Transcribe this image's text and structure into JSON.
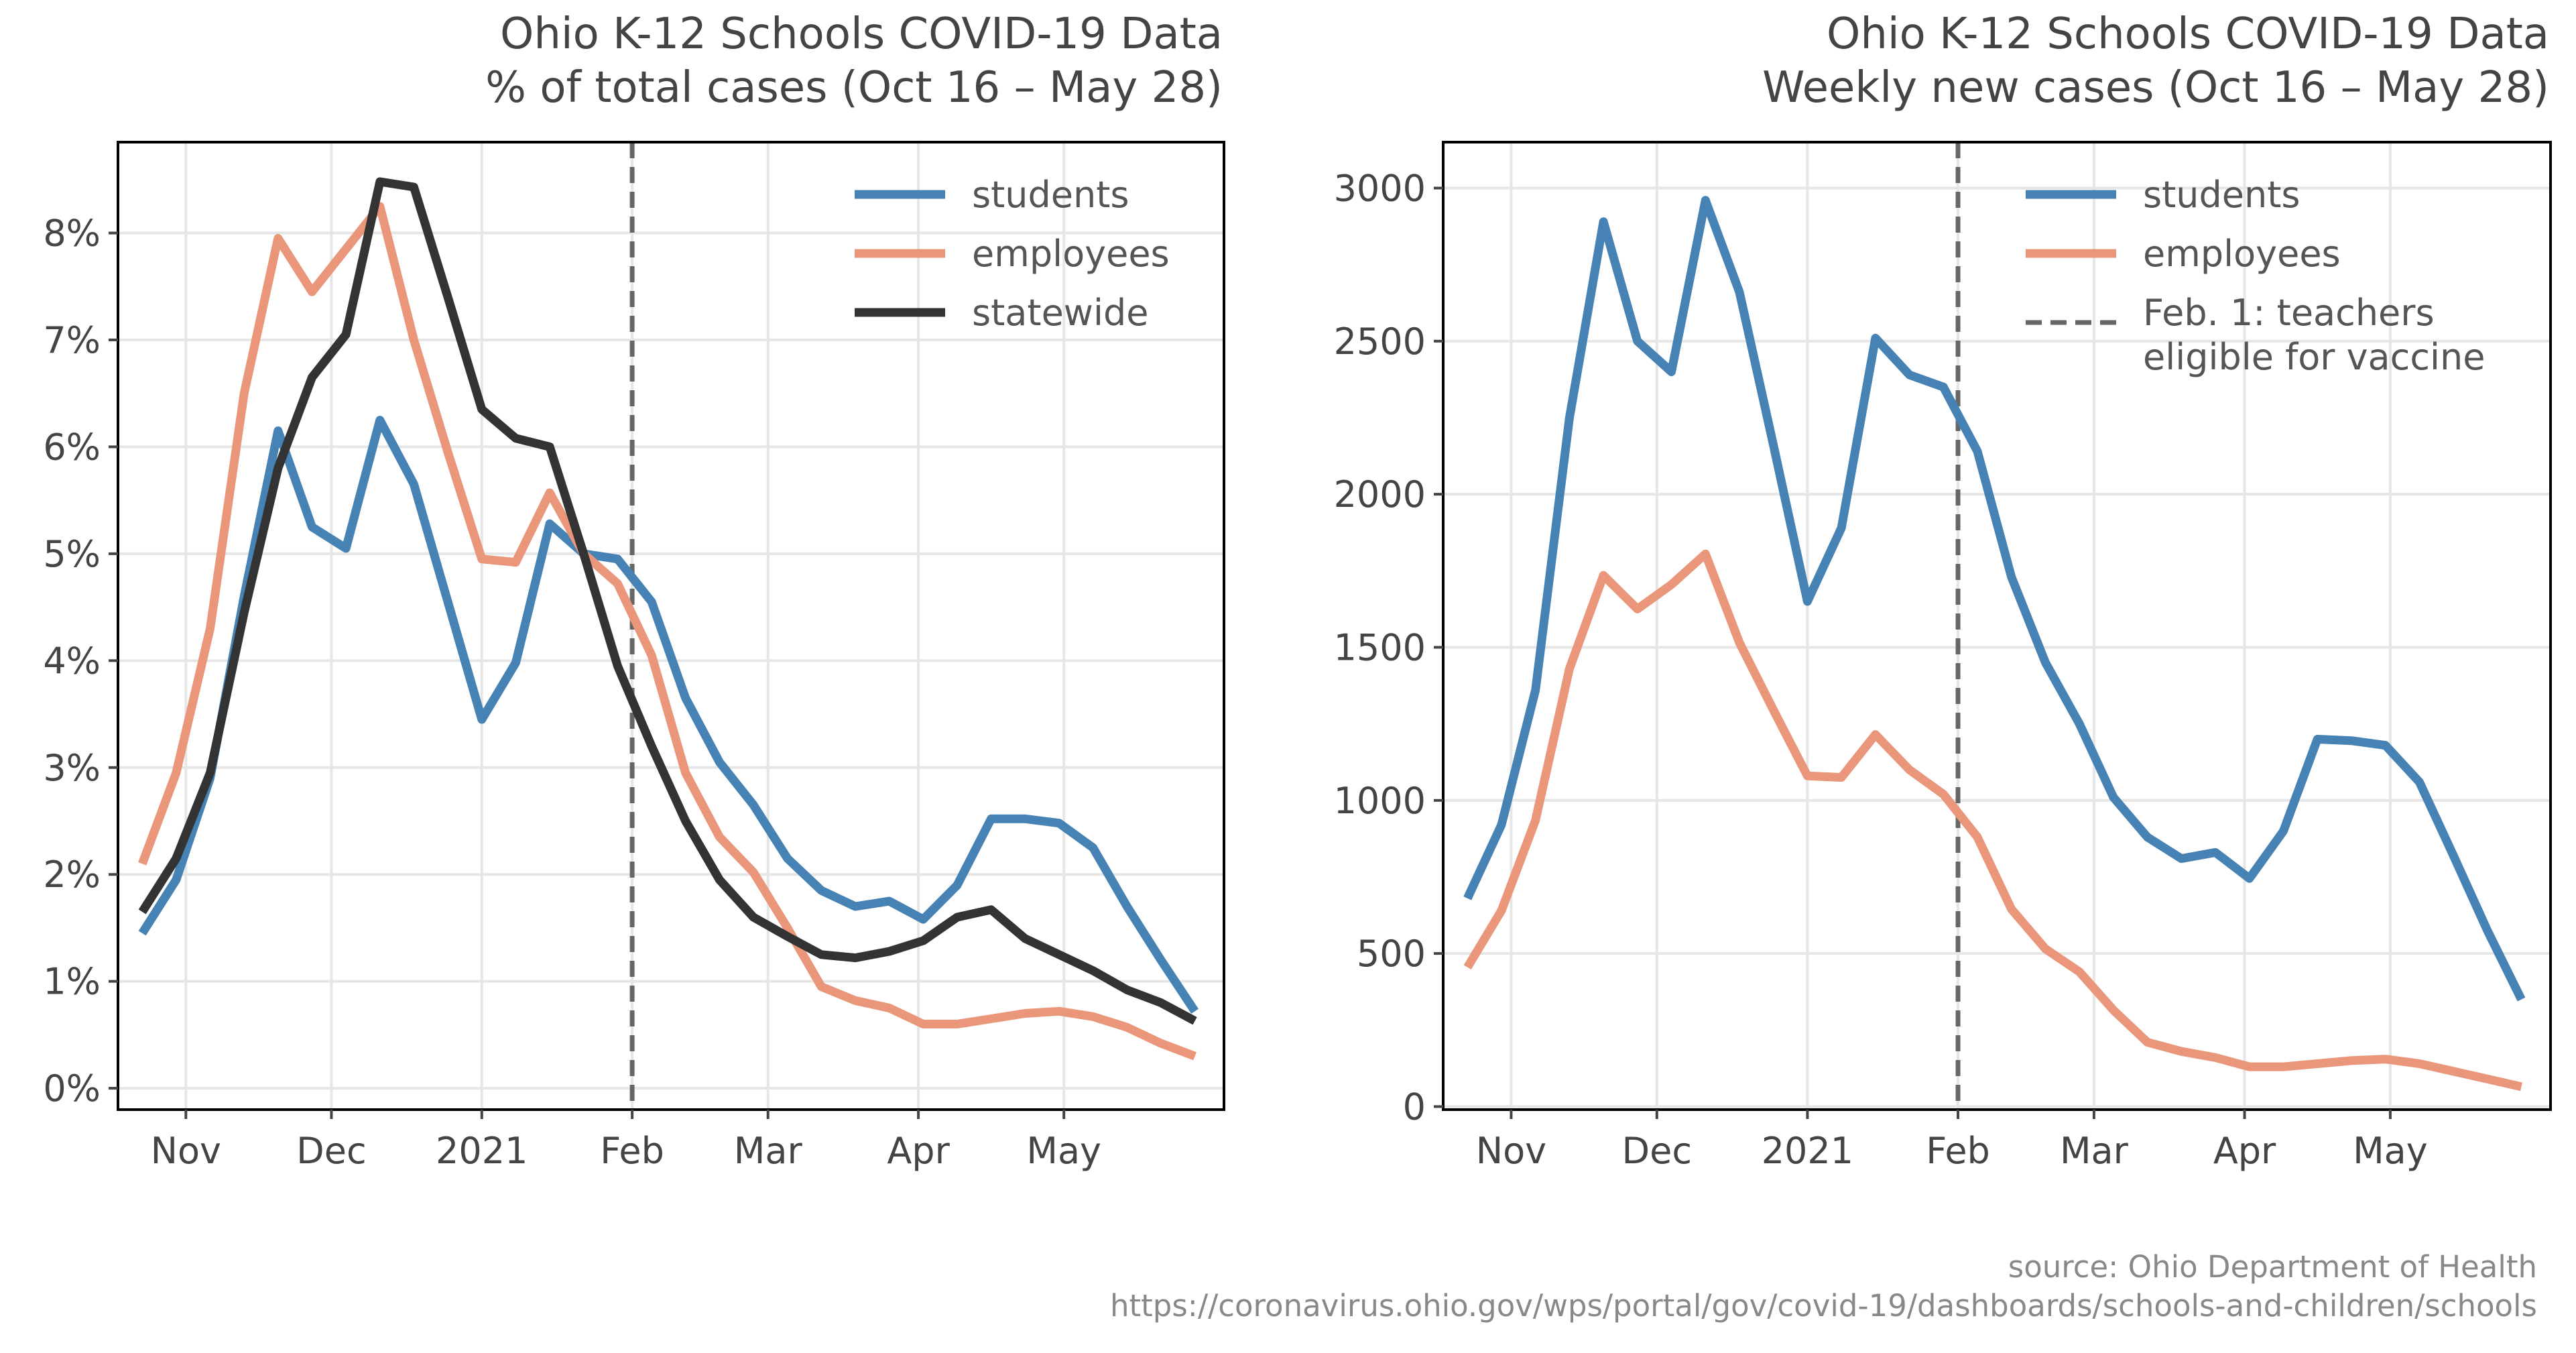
{
  "source": {
    "line1": "source: Ohio Department of Health",
    "line2": "https://coronavirus.ohio.gov/wps/portal/gov/covid-19/dashboards/schools-and-children/schools"
  },
  "colors": {
    "students": "#4682b4",
    "employees": "#e9967a",
    "statewide": "#333333",
    "vline": "#666666",
    "grid": "#e6e6e6",
    "text": "#444444"
  },
  "chart_data": [
    {
      "type": "line",
      "title": "Ohio K-12 Schools COVID-19 Data",
      "subtitle": "% of total cases (Oct 16 – May 28)",
      "xlabel": "",
      "ylabel": "",
      "x_axis": "date",
      "xlim": [
        "2020-10-18",
        "2021-06-03"
      ],
      "ylim": [
        -0.2,
        8.85
      ],
      "yticks": [
        0,
        1,
        2,
        3,
        4,
        5,
        6,
        7,
        8
      ],
      "ytick_labels": [
        "0%",
        "1%",
        "2%",
        "3%",
        "4%",
        "5%",
        "6%",
        "7%",
        "8%"
      ],
      "xticks": [
        "2020-11-01",
        "2020-12-01",
        "2021-01-01",
        "2021-02-01",
        "2021-03-01",
        "2021-04-01",
        "2021-05-01"
      ],
      "xtick_labels": [
        "Nov",
        "Dec",
        "2021",
        "Feb",
        "Mar",
        "Apr",
        "May"
      ],
      "grid": true,
      "legend": "top-right",
      "vline": {
        "x": "2021-02-01",
        "style": "dashed"
      },
      "x": [
        "2020-10-23",
        "2020-10-30",
        "2020-11-06",
        "2020-11-13",
        "2020-11-20",
        "2020-11-27",
        "2020-12-04",
        "2020-12-11",
        "2020-12-18",
        "2020-12-25",
        "2021-01-01",
        "2021-01-08",
        "2021-01-15",
        "2021-01-22",
        "2021-01-29",
        "2021-02-05",
        "2021-02-12",
        "2021-02-19",
        "2021-02-26",
        "2021-03-05",
        "2021-03-12",
        "2021-03-19",
        "2021-03-26",
        "2021-04-02",
        "2021-04-09",
        "2021-04-16",
        "2021-04-23",
        "2021-04-30",
        "2021-05-07",
        "2021-05-14",
        "2021-05-21",
        "2021-05-28"
      ],
      "series": [
        {
          "name": "students",
          "values": [
            1.45,
            1.95,
            2.9,
            4.6,
            6.15,
            5.25,
            5.05,
            6.25,
            5.65,
            4.55,
            3.45,
            3.98,
            5.28,
            5.0,
            4.95,
            4.55,
            3.65,
            3.05,
            2.65,
            2.15,
            1.85,
            1.7,
            1.75,
            1.58,
            1.9,
            2.52,
            2.52,
            2.48,
            2.25,
            1.7,
            1.2,
            0.72
          ]
        },
        {
          "name": "employees",
          "values": [
            2.1,
            2.95,
            4.3,
            6.5,
            7.95,
            7.45,
            7.85,
            8.25,
            7.0,
            5.95,
            4.95,
            4.92,
            5.57,
            5.0,
            4.72,
            4.05,
            2.95,
            2.35,
            2.02,
            1.5,
            0.95,
            0.82,
            0.75,
            0.6,
            0.6,
            0.65,
            0.7,
            0.72,
            0.67,
            0.57,
            0.42,
            0.3
          ]
        },
        {
          "name": "statewide",
          "values": [
            1.65,
            2.15,
            2.95,
            4.45,
            5.8,
            6.65,
            7.05,
            8.48,
            8.43,
            7.4,
            6.35,
            6.08,
            6.0,
            5.0,
            3.95,
            3.2,
            2.5,
            1.95,
            1.6,
            1.42,
            1.25,
            1.22,
            1.28,
            1.38,
            1.6,
            1.67,
            1.4,
            1.25,
            1.1,
            0.92,
            0.8,
            0.63
          ]
        }
      ]
    },
    {
      "type": "line",
      "title": "Ohio K-12 Schools COVID-19 Data",
      "subtitle": "Weekly new cases (Oct 16 – May 28)",
      "xlabel": "",
      "ylabel": "",
      "x_axis": "date",
      "xlim": [
        "2020-10-18",
        "2021-06-03"
      ],
      "ylim": [
        -10,
        3150
      ],
      "yticks": [
        0,
        500,
        1000,
        1500,
        2000,
        2500,
        3000
      ],
      "ytick_labels": [
        "0",
        "500",
        "1000",
        "1500",
        "2000",
        "2500",
        "3000"
      ],
      "xticks": [
        "2020-11-01",
        "2020-12-01",
        "2021-01-01",
        "2021-02-01",
        "2021-03-01",
        "2021-04-01",
        "2021-05-01"
      ],
      "xtick_labels": [
        "Nov",
        "Dec",
        "2021",
        "Feb",
        "Mar",
        "Apr",
        "May"
      ],
      "grid": true,
      "legend": "top-right",
      "vline": {
        "x": "2021-02-01",
        "style": "dashed",
        "label": "Feb. 1: teachers\neligible for vaccine"
      },
      "x": [
        "2020-10-23",
        "2020-10-30",
        "2020-11-06",
        "2020-11-13",
        "2020-11-20",
        "2020-11-27",
        "2020-12-04",
        "2020-12-11",
        "2020-12-18",
        "2020-12-25",
        "2021-01-01",
        "2021-01-08",
        "2021-01-15",
        "2021-01-22",
        "2021-01-29",
        "2021-02-05",
        "2021-02-12",
        "2021-02-19",
        "2021-02-26",
        "2021-03-05",
        "2021-03-12",
        "2021-03-19",
        "2021-03-26",
        "2021-04-02",
        "2021-04-09",
        "2021-04-16",
        "2021-04-23",
        "2021-04-30",
        "2021-05-07",
        "2021-05-14",
        "2021-05-21",
        "2021-05-28"
      ],
      "series": [
        {
          "name": "students",
          "values": [
            680,
            920,
            1360,
            2250,
            2890,
            2500,
            2400,
            2960,
            2660,
            2160,
            1650,
            1890,
            2510,
            2390,
            2350,
            2140,
            1730,
            1450,
            1250,
            1010,
            880,
            810,
            830,
            745,
            900,
            1200,
            1195,
            1180,
            1060,
            820,
            575,
            350
          ]
        },
        {
          "name": "employees",
          "values": [
            455,
            640,
            935,
            1430,
            1735,
            1625,
            1705,
            1805,
            1515,
            1295,
            1080,
            1075,
            1215,
            1100,
            1020,
            880,
            645,
            515,
            440,
            315,
            210,
            180,
            160,
            130,
            130,
            140,
            150,
            155,
            140,
            115,
            90,
            65
          ]
        }
      ]
    }
  ]
}
